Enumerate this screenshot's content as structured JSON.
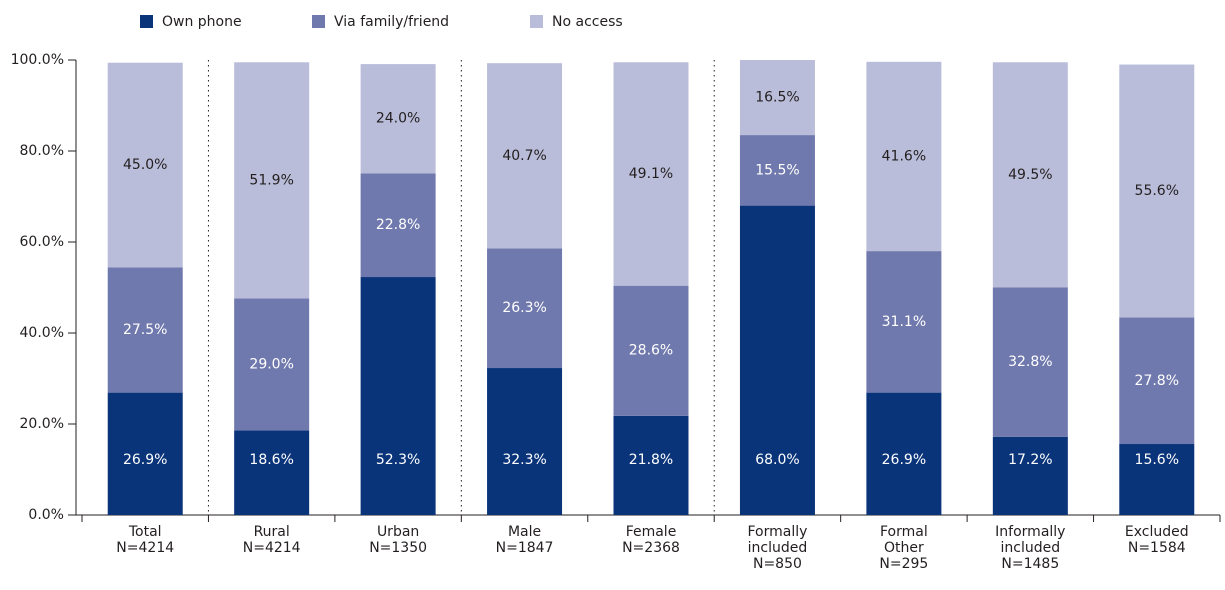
{
  "chart_data": {
    "type": "stacked_bar",
    "categories": [
      "Total\nN=4214",
      "Rural\nN=4214",
      "Urban\nN=1350",
      "Male\nN=1847",
      "Female\nN=2368",
      "Formally\nincluded\nN=850",
      "Formal\nOther\nN=295",
      "Informally\nincluded\nN=1485",
      "Excluded\nN=1584"
    ],
    "series": [
      {
        "name": "Own phone",
        "color": "#0a347a",
        "label_color": "#ffffff",
        "values": [
          26.9,
          18.6,
          52.3,
          32.3,
          21.8,
          68.0,
          26.9,
          17.2,
          15.6
        ],
        "value_labels": [
          "26.9%",
          "18.6%",
          "52.3%",
          "32.3%",
          "21.8%",
          "68.0%",
          "26.9%",
          "17.2%",
          "15.6%"
        ]
      },
      {
        "name": "Via family/friend",
        "color": "#7079ad",
        "label_color": "#ffffff",
        "values": [
          27.5,
          29.0,
          22.8,
          26.3,
          28.6,
          15.5,
          31.1,
          32.8,
          27.8
        ],
        "value_labels": [
          "27.5%",
          "29.0%",
          "22.8%",
          "26.3%",
          "28.6%",
          "15.5%",
          "31.1%",
          "32.8%",
          "27.8%"
        ]
      },
      {
        "name": "No access",
        "color": "#babdd9",
        "label_color": "#231f20",
        "values": [
          45.0,
          51.9,
          24.0,
          40.7,
          49.1,
          16.5,
          41.6,
          49.5,
          55.6
        ],
        "value_labels": [
          "45.0%",
          "51.9%",
          "24.0%",
          "40.7%",
          "49.1%",
          "16.5%",
          "41.6%",
          "49.5%",
          "55.6%"
        ]
      }
    ],
    "ylim": [
      0,
      100
    ],
    "yticks": [
      {
        "value": 0,
        "label": "0.0%"
      },
      {
        "value": 20,
        "label": "20.0%"
      },
      {
        "value": 40,
        "label": "40.0%"
      },
      {
        "value": 60,
        "label": "60.0%"
      },
      {
        "value": 80,
        "label": "80.0%"
      },
      {
        "value": 100,
        "label": "100.0%"
      }
    ]
  }
}
